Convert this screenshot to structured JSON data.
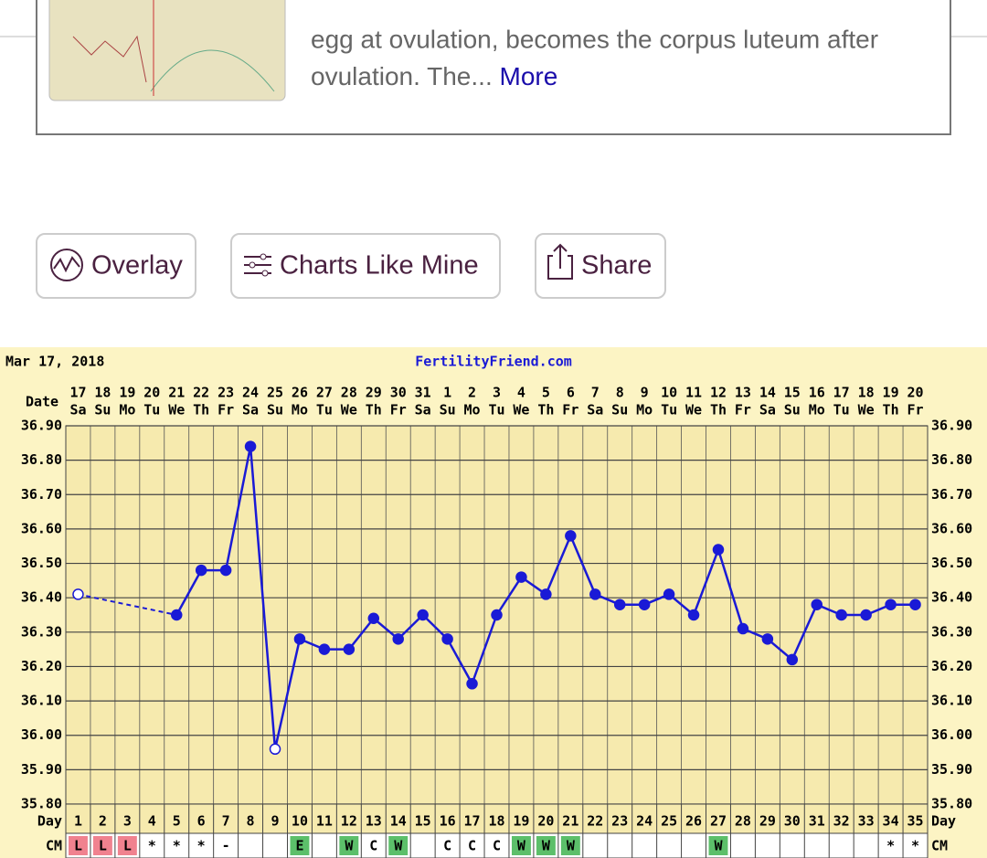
{
  "page": {
    "card_text": [
      "egg at ovulation, becomes the corpus luteum after",
      "ovulation. The..."
    ],
    "card_link": "More",
    "buttons": [
      "Overlay",
      "Charts Like Mine",
      "Share"
    ]
  },
  "chart_data": {
    "type": "line",
    "title": "FertilityFriend.com",
    "date_label": "Mar 17, 2018",
    "x_label": "Date",
    "categories": [
      "17",
      "18",
      "19",
      "20",
      "21",
      "22",
      "23",
      "24",
      "25",
      "26",
      "27",
      "28",
      "29",
      "30",
      "31",
      "1",
      "2",
      "3",
      "4",
      "5",
      "6",
      "7",
      "8",
      "9",
      "10",
      "11",
      "12",
      "13",
      "14",
      "15",
      "16",
      "17",
      "18",
      "19",
      "20"
    ],
    "weekdays": [
      "Sa",
      "Su",
      "Mo",
      "Tu",
      "We",
      "Th",
      "Fr",
      "Sa",
      "Su",
      "Mo",
      "Tu",
      "We",
      "Th",
      "Fr",
      "Sa",
      "Su",
      "Mo",
      "Tu",
      "We",
      "Th",
      "Fr",
      "Sa",
      "Su",
      "Mo",
      "Tu",
      "We",
      "Th",
      "Fr",
      "Sa",
      "Su",
      "Mo",
      "Tu",
      "We",
      "Th",
      "Fr"
    ],
    "day_label": "Day",
    "days": [
      1,
      2,
      3,
      4,
      5,
      6,
      7,
      8,
      9,
      10,
      11,
      12,
      13,
      14,
      15,
      16,
      17,
      18,
      19,
      20,
      21,
      22,
      23,
      24,
      25,
      26,
      27,
      28,
      29,
      30,
      31,
      32,
      33,
      34,
      35
    ],
    "cm_label": "CM",
    "cm": [
      "L",
      "L",
      "L",
      "*",
      "*",
      "*",
      "-",
      null,
      null,
      "E",
      null,
      "W",
      "C",
      "W",
      null,
      "C",
      "C",
      "C",
      "W",
      "W",
      "W",
      null,
      null,
      null,
      null,
      null,
      "W",
      null,
      null,
      null,
      null,
      null,
      null,
      "*",
      "*"
    ],
    "cm_colors": {
      "L": "#f0828f",
      "E": "#5cbf6a",
      "W": "#5cbf6a"
    },
    "values": [
      36.41,
      null,
      null,
      null,
      36.35,
      36.48,
      36.48,
      36.84,
      35.96,
      36.28,
      36.25,
      36.25,
      36.34,
      36.28,
      36.35,
      36.28,
      36.15,
      36.35,
      36.46,
      36.41,
      36.58,
      36.41,
      36.38,
      36.38,
      36.41,
      36.35,
      36.54,
      36.31,
      36.28,
      36.22,
      36.38,
      36.35,
      36.35,
      36.38,
      36.38
    ],
    "open_markers": [
      1,
      9
    ],
    "color": "#1a1ad6",
    "ylim": [
      35.8,
      36.9
    ],
    "yticks": [
      {
        "value": 35.8,
        "label": "35.80"
      },
      {
        "value": 35.9,
        "label": "35.90"
      },
      {
        "value": 36.0,
        "label": "36.00"
      },
      {
        "value": 36.1,
        "label": "36.10"
      },
      {
        "value": 36.2,
        "label": "36.20"
      },
      {
        "value": 36.3,
        "label": "36.30"
      },
      {
        "value": 36.4,
        "label": "36.40"
      },
      {
        "value": 36.5,
        "label": "36.50"
      },
      {
        "value": 36.6,
        "label": "36.60"
      },
      {
        "value": 36.7,
        "label": "36.70"
      },
      {
        "value": 36.8,
        "label": "36.80"
      },
      {
        "value": 36.9,
        "label": "36.90"
      }
    ],
    "grid": true
  }
}
